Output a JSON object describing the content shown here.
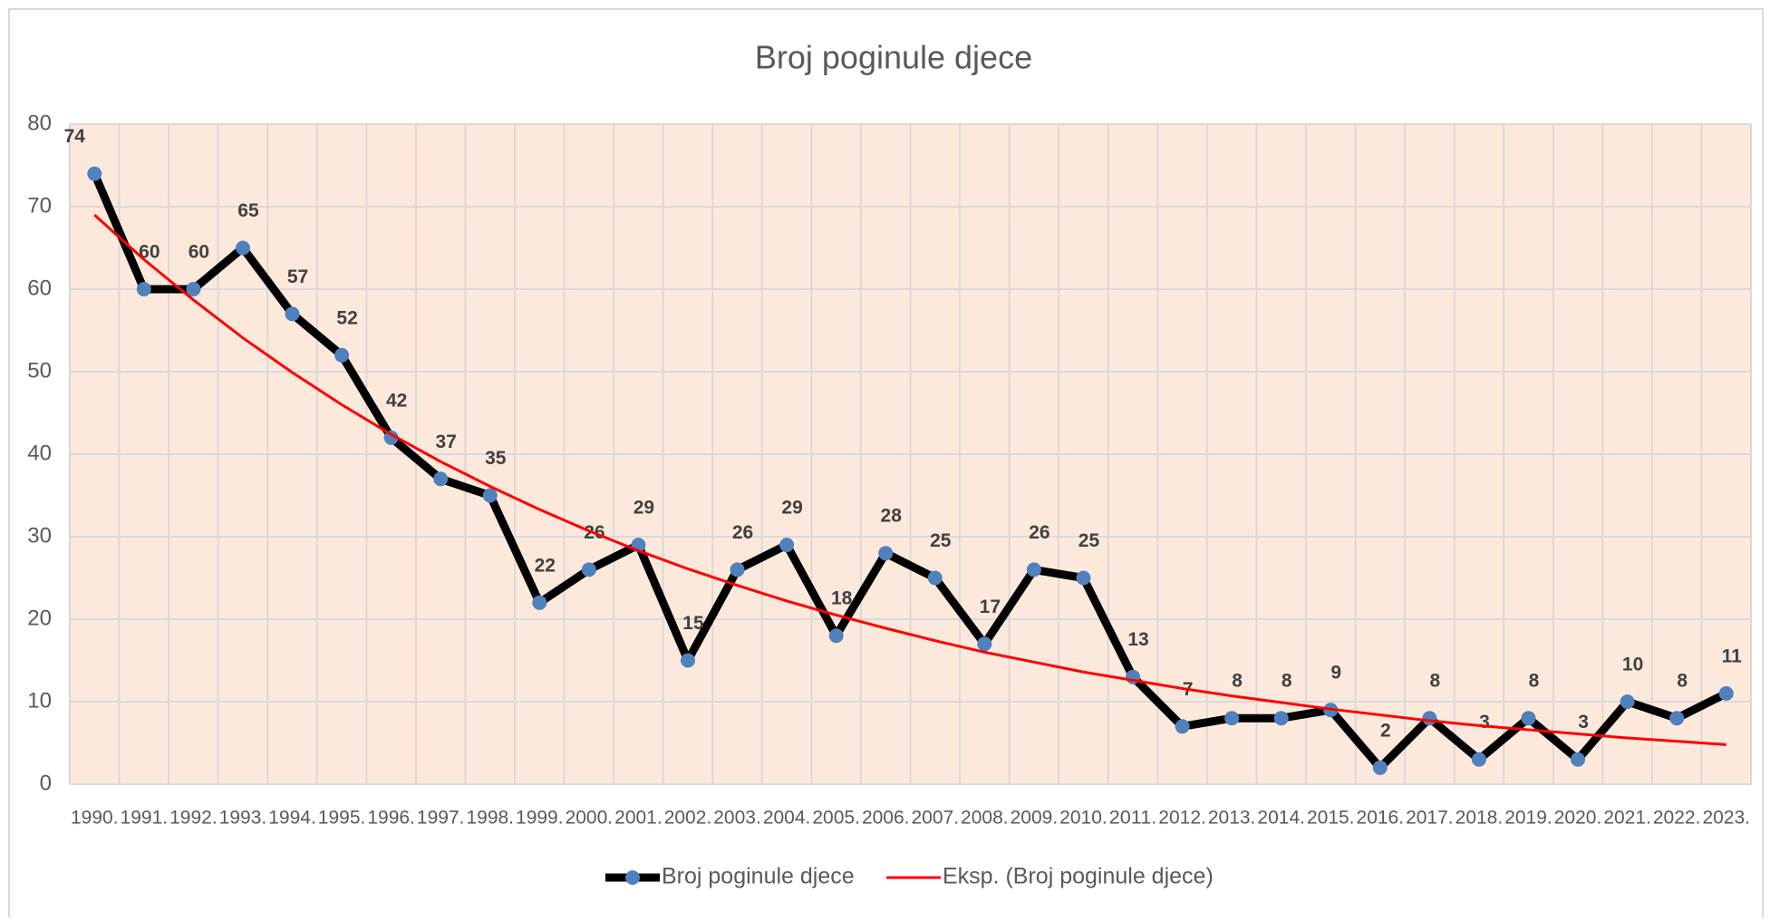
{
  "chart_data": {
    "type": "line",
    "title": "Broj poginule djece",
    "categories": [
      "1990.",
      "1991.",
      "1992.",
      "1993.",
      "1994.",
      "1995.",
      "1996.",
      "1997.",
      "1998.",
      "1999.",
      "2000.",
      "2001.",
      "2002.",
      "2003.",
      "2004.",
      "2005.",
      "2006.",
      "2007.",
      "2008.",
      "2009.",
      "2010.",
      "2011.",
      "2012.",
      "2013.",
      "2014.",
      "2015.",
      "2016.",
      "2017.",
      "2018.",
      "2019.",
      "2020.",
      "2021.",
      "2022.",
      "2023."
    ],
    "series": [
      {
        "name": "Broj poginule djece",
        "color": "#000000",
        "marker_color": "#4f81bd",
        "data_labels": true,
        "values": [
          74,
          60,
          60,
          65,
          57,
          52,
          42,
          37,
          35,
          22,
          26,
          29,
          15,
          26,
          29,
          18,
          28,
          25,
          17,
          26,
          25,
          13,
          7,
          8,
          8,
          9,
          2,
          8,
          3,
          8,
          3,
          10,
          8,
          11
        ]
      },
      {
        "name": "Eksp. (Broj poginule djece)",
        "color": "#ff0000",
        "values": [
          69,
          63.6,
          58.7,
          54.1,
          49.9,
          46.0,
          42.4,
          39.1,
          36.1,
          33.3,
          30.7,
          28.3,
          26.1,
          24.1,
          22.2,
          20.5,
          18.9,
          17.4,
          16.0,
          14.8,
          13.6,
          12.6,
          11.6,
          10.7,
          9.9,
          9.1,
          8.4,
          7.7,
          7.1,
          6.6,
          6.1,
          5.6,
          5.2,
          4.8
        ]
      }
    ],
    "ylim": [
      0,
      80
    ],
    "yticks": [
      0,
      10,
      20,
      30,
      40,
      50,
      60,
      70,
      80
    ],
    "grid": true,
    "legend": "bottom"
  }
}
